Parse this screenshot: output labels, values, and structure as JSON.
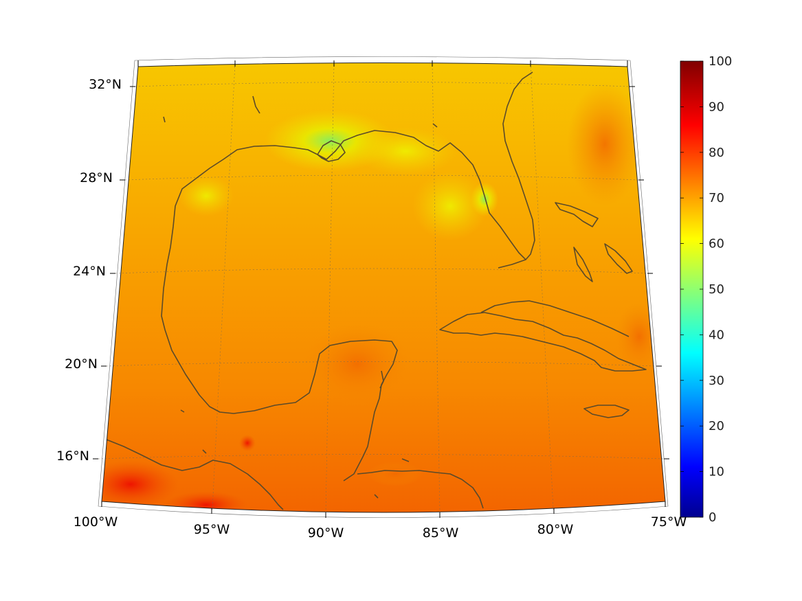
{
  "map": {
    "region": "Gulf of Mexico and Caribbean",
    "projection": "conic",
    "lon_range_deg": [
      -100,
      -75
    ],
    "lat_range_deg": [
      14,
      33
    ],
    "graticule": "dotted",
    "coastline_color": "#5a4a2a",
    "colormap": "jet",
    "lon_ticks": [
      {
        "value": -100,
        "label": "100°W"
      },
      {
        "value": -95,
        "label": "95°W"
      },
      {
        "value": -90,
        "label": "90°W"
      },
      {
        "value": -85,
        "label": "85°W"
      },
      {
        "value": -80,
        "label": "80°W"
      },
      {
        "value": -75,
        "label": "75°W"
      }
    ],
    "lat_ticks": [
      {
        "value": 32,
        "label": "32°N"
      },
      {
        "value": 28,
        "label": "28°N"
      },
      {
        "value": 24,
        "label": "24°N"
      },
      {
        "value": 20,
        "label": "20°N"
      },
      {
        "value": 16,
        "label": "16°N"
      }
    ]
  },
  "colorbar": {
    "min": 0,
    "max": 100,
    "ticks": [
      "0",
      "10",
      "20",
      "30",
      "40",
      "50",
      "60",
      "70",
      "80",
      "90",
      "100"
    ]
  }
}
